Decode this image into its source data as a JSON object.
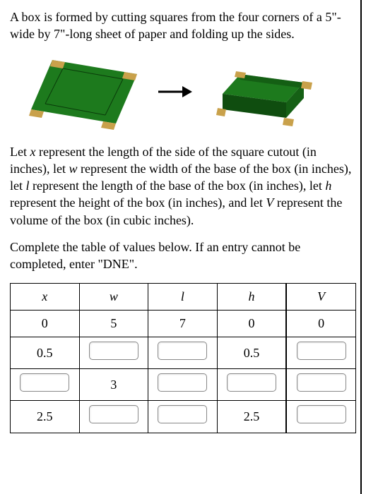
{
  "problem": {
    "intro_a": "A box is formed by cutting squares from the four corners of a 5\"-wide by 7\"-long sheet of paper and folding up the sides.",
    "let_text_1": "Let ",
    "x_var": "x",
    "let_text_2": " represent the length of the side of the square cutout (in inches), let ",
    "w_var": "w",
    "let_text_3": " represent the width of the base of the box (in inches), let ",
    "l_var": "l",
    "let_text_4": " represent the length of the base of the box (in inches), let ",
    "h_var": "h",
    "let_text_5": " represent the height of the box (in inches), and let ",
    "V_var": "V",
    "let_text_6": " represent the volume of the box (in cubic inches).",
    "instruction": "Complete the table of values below. If an entry cannot be completed, enter \"DNE\"."
  },
  "table": {
    "headers": {
      "x": "x",
      "w": "w",
      "l": "l",
      "h": "h",
      "V": "V"
    },
    "rows": [
      {
        "x": "0",
        "w": "5",
        "l": "7",
        "h": "0",
        "V": "0",
        "inputs": {
          "x": false,
          "w": false,
          "l": false,
          "h": false,
          "V": false
        }
      },
      {
        "x": "0.5",
        "w": "",
        "l": "",
        "h": "0.5",
        "V": "",
        "inputs": {
          "x": false,
          "w": true,
          "l": true,
          "h": false,
          "V": true
        }
      },
      {
        "x": "",
        "w": "3",
        "l": "",
        "h": "",
        "V": "",
        "inputs": {
          "x": true,
          "w": false,
          "l": true,
          "h": true,
          "V": true
        }
      },
      {
        "x": "2.5",
        "w": "",
        "l": "",
        "h": "2.5",
        "V": "",
        "inputs": {
          "x": false,
          "w": true,
          "l": true,
          "h": false,
          "V": true
        }
      }
    ]
  },
  "diagram": {
    "colors": {
      "paper_tab": "#c9a14b",
      "box_top": "#1d7a1d",
      "box_side_dark": "#0f4d0f",
      "box_side_mid": "#156015",
      "fold_line": "#0a3a0a",
      "arrow": "#000000"
    }
  }
}
